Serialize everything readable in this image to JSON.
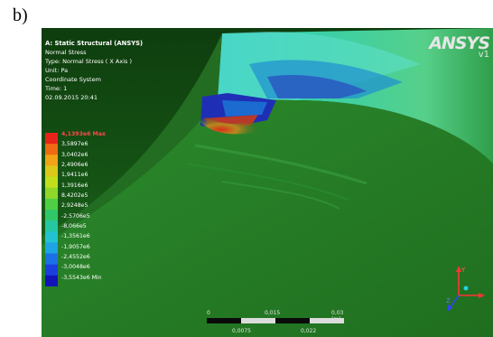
{
  "figure_label": "b)",
  "info": {
    "title": "A: Static Structural (ANSYS)",
    "result": "Normal Stress",
    "type": "Type: Normal Stress ( X Axis )",
    "unit": "Unit: Pa",
    "coordinate": "Coordinate System",
    "time": "Time: 1",
    "date": "02.09.2015 20:41"
  },
  "legend": {
    "max_label": "4,1393e6 Max",
    "values": [
      "3,5897e6",
      "3,0402e6",
      "2,4906e6",
      "1,9411e6",
      "1,3916e6",
      "8,4202e5",
      "2,9248e5",
      "-2,5706e5",
      "-8,066e5",
      "-1,3561e6",
      "-1,9057e6",
      "-2,4552e6",
      "-3,0048e6"
    ],
    "min_label": "-3,5543e6 Min",
    "colors": [
      "#e8231a",
      "#ef6a12",
      "#f2a317",
      "#dcc81a",
      "#c2df1c",
      "#8fd82a",
      "#4fd044",
      "#2fc868",
      "#25c7a2",
      "#22c3cf",
      "#1ea3e3",
      "#1b70e6",
      "#1a3fdd",
      "#1214b8"
    ]
  },
  "logo": {
    "brand": "ANSYS",
    "version": "v1"
  },
  "scale": {
    "top_ticks": [
      "0",
      "0,015",
      "0,03 (m)"
    ],
    "bottom_ticks": [
      "0,0075",
      "0,022"
    ]
  },
  "triad": {
    "y_label": "Y",
    "z_label": "Z",
    "x_color": "#ff3333",
    "y_color": "#ff3333",
    "z_color": "#3344ff"
  }
}
